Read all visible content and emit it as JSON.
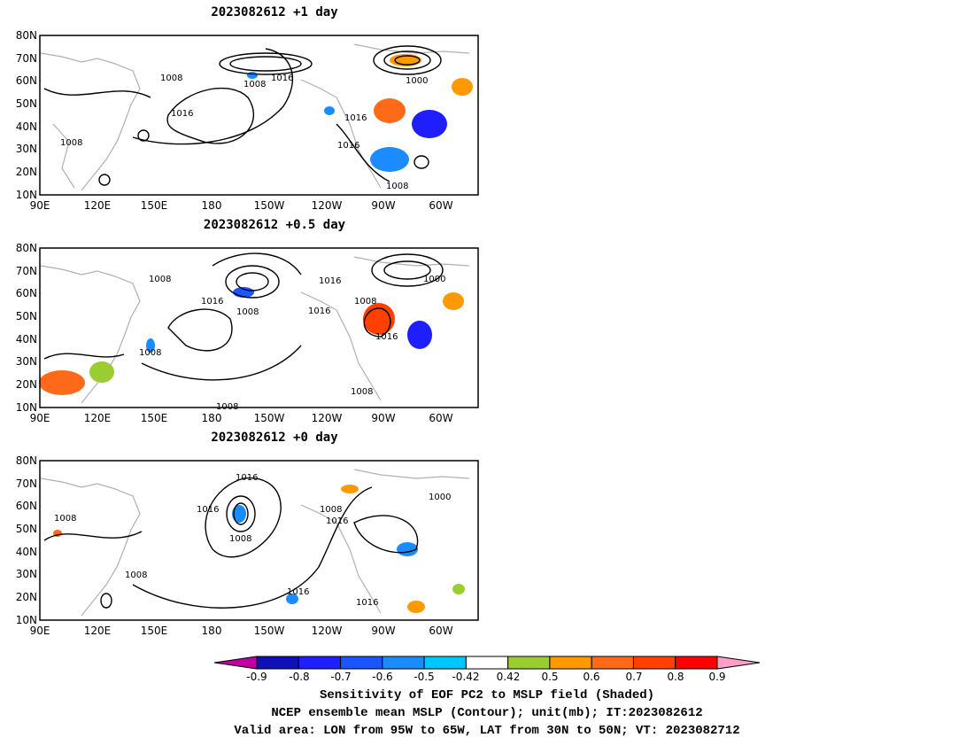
{
  "panels": [
    {
      "title": "2023082612  +1 day",
      "contour_labels": [
        "1008",
        "1016",
        "1008",
        "1016",
        "1016",
        "1000",
        "1016",
        "1008",
        "1008"
      ]
    },
    {
      "title": "2023082612  +0.5 day",
      "contour_labels": [
        "1008",
        "1016",
        "1008",
        "1016",
        "1016",
        "1000",
        "1008",
        "1016",
        "1008",
        "1008",
        "1008"
      ]
    },
    {
      "title": "2023082612  +0 day",
      "contour_labels": [
        "1016",
        "1016",
        "1008",
        "1008",
        "1008",
        "1016",
        "1000",
        "1008",
        "1016",
        "1016"
      ]
    }
  ],
  "axes": {
    "y_ticks": [
      "80N",
      "70N",
      "60N",
      "50N",
      "40N",
      "30N",
      "20N",
      "10N"
    ],
    "x_ticks": [
      "90E",
      "120E",
      "150E",
      "180",
      "150W",
      "120W",
      "90W",
      "60W"
    ]
  },
  "colorbar": {
    "labels": [
      "-0.9",
      "-0.8",
      "-0.7",
      "-0.6",
      "-0.5",
      "-0.42",
      "0.42",
      "0.5",
      "0.6",
      "0.7",
      "0.8",
      "0.9"
    ],
    "colors": [
      "#1010b8",
      "#1e1eff",
      "#1a55ff",
      "#1a8cff",
      "#00c8ff",
      "#ffffff",
      "#9acd32",
      "#ff9900",
      "#ff6a1a",
      "#ff4000",
      "#ff0000"
    ],
    "end_low": "#c000a0",
    "end_high": "#ff9ec8"
  },
  "footer": {
    "line1": "Sensitivity of EOF PC2 to MSLP field (Shaded)",
    "line2": "NCEP ensemble mean MSLP (Contour); unit(mb); IT:2023082612",
    "line3": "Valid area: LON from 95W to 65W, LAT from 30N to 50N; VT: 2023082712"
  }
}
